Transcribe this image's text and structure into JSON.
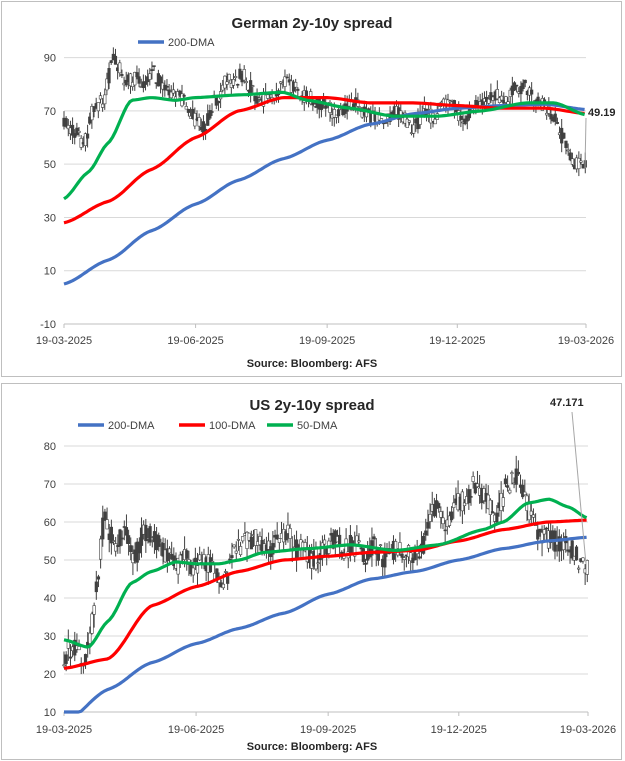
{
  "chart_data": [
    {
      "type": "line",
      "title": "German 2y-10y spread",
      "source": "Source: Bloomberg: AFS",
      "ylim": [
        -10,
        100
      ],
      "y_ticks": [
        -10,
        10,
        30,
        50,
        70,
        90
      ],
      "x_range": [
        "2025-03-19",
        "2026-03-19"
      ],
      "x_ticks": [
        "19-03-2025",
        "19-06-2025",
        "19-09-2025",
        "19-12-2025",
        "19-03-2026"
      ],
      "grid": "horizontal",
      "legend_position": "top-left",
      "annotation": {
        "label": "49.19",
        "value": 49.19
      },
      "spread_points": [
        [
          "2025-03-19",
          66
        ],
        [
          "2025-03-26",
          63
        ],
        [
          "2025-04-02",
          57
        ],
        [
          "2025-04-09",
          72
        ],
        [
          "2025-04-16",
          74
        ],
        [
          "2025-04-23",
          92
        ],
        [
          "2025-04-30",
          80
        ],
        [
          "2025-05-07",
          82
        ],
        [
          "2025-05-14",
          80
        ],
        [
          "2025-05-21",
          84
        ],
        [
          "2025-05-28",
          78
        ],
        [
          "2025-06-04",
          76
        ],
        [
          "2025-06-11",
          74
        ],
        [
          "2025-06-18",
          67
        ],
        [
          "2025-06-25",
          63
        ],
        [
          "2025-07-02",
          73
        ],
        [
          "2025-07-09",
          80
        ],
        [
          "2025-07-16",
          82
        ],
        [
          "2025-07-23",
          84
        ],
        [
          "2025-07-30",
          76
        ],
        [
          "2025-08-06",
          74
        ],
        [
          "2025-08-13",
          76
        ],
        [
          "2025-08-20",
          80
        ],
        [
          "2025-08-27",
          79
        ],
        [
          "2025-09-03",
          76
        ],
        [
          "2025-09-10",
          74
        ],
        [
          "2025-09-17",
          72
        ],
        [
          "2025-09-24",
          69
        ],
        [
          "2025-10-01",
          70
        ],
        [
          "2025-10-08",
          73
        ],
        [
          "2025-10-15",
          70
        ],
        [
          "2025-10-22",
          67
        ],
        [
          "2025-10-29",
          65
        ],
        [
          "2025-11-05",
          70
        ],
        [
          "2025-11-12",
          67
        ],
        [
          "2025-11-19",
          63
        ],
        [
          "2025-11-26",
          70
        ],
        [
          "2025-12-03",
          67
        ],
        [
          "2025-12-10",
          74
        ],
        [
          "2025-12-17",
          71
        ],
        [
          "2025-12-24",
          67
        ],
        [
          "2025-12-31",
          71
        ],
        [
          "2026-01-07",
          74
        ],
        [
          "2026-01-14",
          77
        ],
        [
          "2026-01-21",
          73
        ],
        [
          "2026-01-28",
          78
        ],
        [
          "2026-02-04",
          79
        ],
        [
          "2026-02-11",
          75
        ],
        [
          "2026-02-18",
          72
        ],
        [
          "2026-02-25",
          68
        ],
        [
          "2026-03-04",
          58
        ],
        [
          "2026-03-09",
          52
        ],
        [
          "2026-03-13",
          50
        ],
        [
          "2026-03-19",
          49.19
        ]
      ],
      "series": [
        {
          "name": "200-DMA",
          "color": "#4472c4",
          "in_legend": true,
          "values": [
            [
              "2025-03-19",
              5
            ],
            [
              "2025-04-19",
              14
            ],
            [
              "2025-05-19",
              25
            ],
            [
              "2025-06-19",
              35
            ],
            [
              "2025-07-19",
              44
            ],
            [
              "2025-08-19",
              52
            ],
            [
              "2025-09-19",
              59
            ],
            [
              "2025-10-19",
              65
            ],
            [
              "2025-11-19",
              69
            ],
            [
              "2025-12-19",
              71
            ],
            [
              "2026-01-19",
              72
            ],
            [
              "2026-02-19",
              72.5
            ],
            [
              "2026-03-19",
              70.5
            ]
          ]
        },
        {
          "name": "100-DMA",
          "color": "#ff0000",
          "in_legend": false,
          "values": [
            [
              "2025-03-19",
              28
            ],
            [
              "2025-04-19",
              36
            ],
            [
              "2025-05-19",
              48
            ],
            [
              "2025-06-19",
              60
            ],
            [
              "2025-07-19",
              70
            ],
            [
              "2025-08-19",
              75
            ],
            [
              "2025-09-19",
              75
            ],
            [
              "2025-10-19",
              73
            ],
            [
              "2025-11-19",
              73
            ],
            [
              "2025-12-19",
              72
            ],
            [
              "2026-01-19",
              71
            ],
            [
              "2026-02-19",
              71
            ],
            [
              "2026-03-19",
              69
            ]
          ]
        },
        {
          "name": "50-DMA",
          "color": "#00b050",
          "in_legend": false,
          "values": [
            [
              "2025-03-19",
              37
            ],
            [
              "2025-04-05",
              47
            ],
            [
              "2025-04-19",
              58
            ],
            [
              "2025-05-05",
              74
            ],
            [
              "2025-05-19",
              75
            ],
            [
              "2025-06-05",
              74
            ],
            [
              "2025-06-19",
              75
            ],
            [
              "2025-07-19",
              76
            ],
            [
              "2025-08-19",
              77
            ],
            [
              "2025-09-05",
              74
            ],
            [
              "2025-10-05",
              71
            ],
            [
              "2025-11-05",
              68
            ],
            [
              "2025-12-05",
              68
            ],
            [
              "2026-01-05",
              70
            ],
            [
              "2026-02-05",
              73
            ],
            [
              "2026-02-25",
              73
            ],
            [
              "2026-03-19",
              68.5
            ]
          ]
        }
      ]
    },
    {
      "type": "line",
      "title": "US 2y-10y spread",
      "source": "Source: Bloomberg: AFS",
      "ylim": [
        10,
        80
      ],
      "y_ticks": [
        10,
        20,
        30,
        40,
        50,
        60,
        70,
        80
      ],
      "x_range": [
        "2025-03-19",
        "2026-03-19"
      ],
      "x_ticks": [
        "19-03-2025",
        "19-06-2025",
        "19-09-2025",
        "19-12-2025",
        "19-03-2026"
      ],
      "grid": "horizontal",
      "legend_position": "top-left",
      "annotation": {
        "label": "47.171",
        "value": 47.171
      },
      "spread_points": [
        [
          "2025-03-19",
          25
        ],
        [
          "2025-03-26",
          28
        ],
        [
          "2025-04-02",
          24
        ],
        [
          "2025-04-09",
          36
        ],
        [
          "2025-04-16",
          62
        ],
        [
          "2025-04-23",
          54
        ],
        [
          "2025-04-30",
          58
        ],
        [
          "2025-05-07",
          50
        ],
        [
          "2025-05-14",
          58
        ],
        [
          "2025-05-21",
          55
        ],
        [
          "2025-05-28",
          52
        ],
        [
          "2025-06-04",
          48
        ],
        [
          "2025-06-11",
          50
        ],
        [
          "2025-06-18",
          48
        ],
        [
          "2025-06-25",
          50
        ],
        [
          "2025-07-02",
          47
        ],
        [
          "2025-07-09",
          44
        ],
        [
          "2025-07-16",
          52
        ],
        [
          "2025-07-23",
          54
        ],
        [
          "2025-07-30",
          56
        ],
        [
          "2025-08-06",
          52
        ],
        [
          "2025-08-13",
          55
        ],
        [
          "2025-08-20",
          58
        ],
        [
          "2025-08-27",
          53
        ],
        [
          "2025-09-03",
          52
        ],
        [
          "2025-09-10",
          50
        ],
        [
          "2025-09-17",
          54
        ],
        [
          "2025-09-24",
          55
        ],
        [
          "2025-10-01",
          53
        ],
        [
          "2025-10-08",
          54
        ],
        [
          "2025-10-15",
          51
        ],
        [
          "2025-10-22",
          54
        ],
        [
          "2025-10-29",
          50
        ],
        [
          "2025-11-05",
          53
        ],
        [
          "2025-11-12",
          52
        ],
        [
          "2025-11-19",
          51
        ],
        [
          "2025-11-26",
          55
        ],
        [
          "2025-12-03",
          66
        ],
        [
          "2025-12-10",
          60
        ],
        [
          "2025-12-17",
          64
        ],
        [
          "2025-12-24",
          67
        ],
        [
          "2025-12-31",
          70
        ],
        [
          "2026-01-07",
          66
        ],
        [
          "2026-01-14",
          61
        ],
        [
          "2026-01-21",
          69
        ],
        [
          "2026-01-28",
          72
        ],
        [
          "2026-02-04",
          65
        ],
        [
          "2026-02-11",
          58
        ],
        [
          "2026-02-18",
          56
        ],
        [
          "2026-02-25",
          55
        ],
        [
          "2026-03-04",
          55
        ],
        [
          "2026-03-09",
          52
        ],
        [
          "2026-03-13",
          50
        ],
        [
          "2026-03-19",
          47.171
        ]
      ],
      "series": [
        {
          "name": "200-DMA",
          "color": "#4472c4",
          "in_legend": true,
          "values": [
            [
              "2025-03-19",
              7
            ],
            [
              "2025-04-19",
              16
            ],
            [
              "2025-05-19",
              23
            ],
            [
              "2025-06-19",
              28
            ],
            [
              "2025-07-19",
              32
            ],
            [
              "2025-08-19",
              36
            ],
            [
              "2025-09-19",
              41
            ],
            [
              "2025-10-19",
              45
            ],
            [
              "2025-11-19",
              47
            ],
            [
              "2025-12-19",
              50
            ],
            [
              "2026-01-19",
              53
            ],
            [
              "2026-02-19",
              55
            ],
            [
              "2026-03-19",
              56
            ]
          ]
        },
        {
          "name": "100-DMA",
          "color": "#ff0000",
          "in_legend": true,
          "values": [
            [
              "2025-03-19",
              21.5
            ],
            [
              "2025-04-19",
              24
            ],
            [
              "2025-05-19",
              38
            ],
            [
              "2025-06-19",
              43
            ],
            [
              "2025-07-19",
              47
            ],
            [
              "2025-08-19",
              50
            ],
            [
              "2025-09-19",
              51
            ],
            [
              "2025-10-19",
              52
            ],
            [
              "2025-11-19",
              52.5
            ],
            [
              "2025-12-19",
              55
            ],
            [
              "2026-01-19",
              58
            ],
            [
              "2026-02-19",
              60
            ],
            [
              "2026-03-19",
              60.5
            ]
          ]
        },
        {
          "name": "50-DMA",
          "color": "#00b050",
          "in_legend": true,
          "values": [
            [
              "2025-03-19",
              29
            ],
            [
              "2025-04-05",
              27
            ],
            [
              "2025-04-19",
              34
            ],
            [
              "2025-05-05",
              44
            ],
            [
              "2025-05-19",
              47
            ],
            [
              "2025-06-05",
              49.5
            ],
            [
              "2025-06-19",
              49
            ],
            [
              "2025-07-05",
              49
            ],
            [
              "2025-07-19",
              50
            ],
            [
              "2025-08-05",
              52
            ],
            [
              "2025-09-05",
              53
            ],
            [
              "2025-10-05",
              54
            ],
            [
              "2025-11-05",
              52.5
            ],
            [
              "2025-12-05",
              54
            ],
            [
              "2026-01-05",
              58
            ],
            [
              "2026-01-19",
              60
            ],
            [
              "2026-02-05",
              65
            ],
            [
              "2026-02-20",
              66
            ],
            [
              "2026-03-05",
              64
            ],
            [
              "2026-03-19",
              61
            ]
          ]
        }
      ]
    }
  ]
}
